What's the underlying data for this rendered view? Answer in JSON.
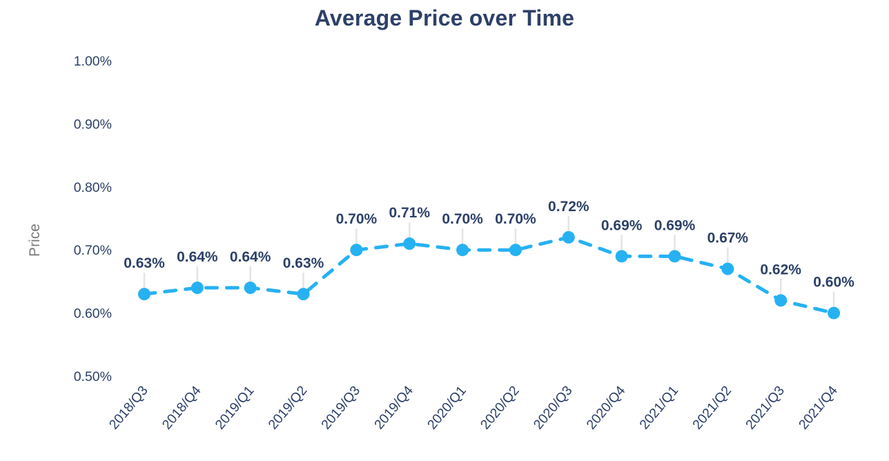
{
  "page": {
    "title": "Average Price over Time"
  },
  "chart_data": {
    "type": "line",
    "title": "Average Price over Time",
    "xlabel": "",
    "ylabel": "Price",
    "categories": [
      "2018/Q3",
      "2018/Q4",
      "2019/Q1",
      "2019/Q2",
      "2019/Q3",
      "2019/Q4",
      "2020/Q1",
      "2020/Q2",
      "2020/Q3",
      "2020/Q4",
      "2021/Q1",
      "2021/Q2",
      "2021/Q3",
      "2021/Q4"
    ],
    "values": [
      0.63,
      0.64,
      0.64,
      0.63,
      0.7,
      0.71,
      0.7,
      0.7,
      0.72,
      0.69,
      0.69,
      0.67,
      0.62,
      0.6
    ],
    "point_labels": [
      "0.63%",
      "0.64%",
      "0.64%",
      "0.63%",
      "0.70%",
      "0.71%",
      "0.70%",
      "0.70%",
      "0.72%",
      "0.69%",
      "0.69%",
      "0.67%",
      "0.62%",
      "0.60%"
    ],
    "yticks": {
      "labels": [
        "1.00%",
        "0.90%",
        "0.80%",
        "0.70%",
        "0.60%",
        "0.50%"
      ],
      "values": [
        1.0,
        0.9,
        0.8,
        0.7,
        0.6,
        0.5
      ]
    },
    "ylim": [
      0.5,
      1.0
    ],
    "grid": false,
    "legend_position": "none",
    "line_style": "dashed",
    "colors": {
      "line": "#25b1f2",
      "marker": "#25b1f2",
      "data_label_text": "#2d4168",
      "axis_tick_text": "#2d4168",
      "title_text": "#2d4168",
      "ylabel_text": "#7b7b7b",
      "leader_line": "#e4e4e4",
      "background": "#ffffff"
    }
  }
}
